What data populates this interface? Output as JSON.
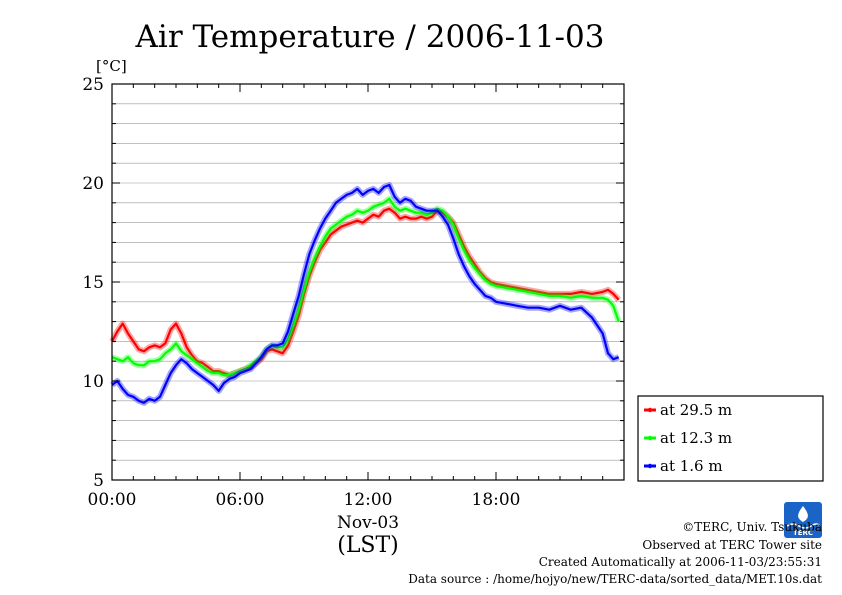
{
  "chart_data": {
    "type": "line",
    "title": "Air Temperature / 2006-11-03",
    "ylabel_unit": "[°C]",
    "xlim": [
      0,
      24
    ],
    "ylim": [
      5,
      25
    ],
    "y_ticks": [
      5,
      10,
      15,
      20,
      25
    ],
    "x_ticks": [
      {
        "value": 0,
        "label": "00:00"
      },
      {
        "value": 6,
        "label": "06:00"
      },
      {
        "value": 12,
        "label": "12:00"
      },
      {
        "value": 18,
        "label": "18:00"
      }
    ],
    "x_sublabel": "Nov-03",
    "x_axis_label": "(LST)",
    "grid": true,
    "legend_position": "right-bottom",
    "series": [
      {
        "name": "at 29.5 m",
        "color": "#ff0000",
        "x": [
          0,
          0.25,
          0.5,
          0.75,
          1,
          1.25,
          1.5,
          1.75,
          2,
          2.25,
          2.5,
          2.75,
          3,
          3.25,
          3.5,
          3.75,
          4,
          4.25,
          4.5,
          4.75,
          5,
          5.25,
          5.5,
          5.75,
          6,
          6.25,
          6.5,
          6.75,
          7,
          7.25,
          7.5,
          7.75,
          8,
          8.25,
          8.5,
          8.75,
          9,
          9.25,
          9.5,
          9.75,
          10,
          10.25,
          10.5,
          10.75,
          11,
          11.25,
          11.5,
          11.75,
          12,
          12.25,
          12.5,
          12.75,
          13,
          13.25,
          13.5,
          13.75,
          14,
          14.25,
          14.5,
          14.75,
          15,
          15.25,
          15.5,
          15.75,
          16,
          16.25,
          16.5,
          16.75,
          17,
          17.25,
          17.5,
          17.75,
          18,
          18.5,
          19,
          19.5,
          20,
          20.5,
          21,
          21.5,
          22,
          22.5,
          23,
          23.25,
          23.5,
          23.75
        ],
        "values": [
          12.0,
          12.5,
          12.9,
          12.4,
          12.0,
          11.6,
          11.5,
          11.7,
          11.8,
          11.7,
          11.9,
          12.6,
          12.9,
          12.4,
          11.7,
          11.3,
          11.0,
          10.9,
          10.7,
          10.5,
          10.5,
          10.4,
          10.3,
          10.4,
          10.5,
          10.6,
          10.7,
          10.9,
          11.1,
          11.5,
          11.6,
          11.5,
          11.4,
          11.8,
          12.5,
          13.3,
          14.4,
          15.3,
          16.0,
          16.6,
          17.0,
          17.4,
          17.6,
          17.8,
          17.9,
          18.0,
          18.1,
          18.0,
          18.2,
          18.4,
          18.3,
          18.6,
          18.7,
          18.5,
          18.2,
          18.3,
          18.2,
          18.2,
          18.3,
          18.2,
          18.3,
          18.6,
          18.5,
          18.3,
          18.0,
          17.4,
          16.8,
          16.3,
          15.9,
          15.5,
          15.2,
          15.0,
          14.9,
          14.8,
          14.7,
          14.6,
          14.5,
          14.4,
          14.4,
          14.4,
          14.5,
          14.4,
          14.5,
          14.6,
          14.4,
          14.1
        ]
      },
      {
        "name": "at 12.3 m",
        "color": "#00ff00",
        "x": [
          0,
          0.25,
          0.5,
          0.75,
          1,
          1.25,
          1.5,
          1.75,
          2,
          2.25,
          2.5,
          2.75,
          3,
          3.25,
          3.5,
          3.75,
          4,
          4.25,
          4.5,
          4.75,
          5,
          5.25,
          5.5,
          5.75,
          6,
          6.25,
          6.5,
          6.75,
          7,
          7.25,
          7.5,
          7.75,
          8,
          8.25,
          8.5,
          8.75,
          9,
          9.25,
          9.5,
          9.75,
          10,
          10.25,
          10.5,
          10.75,
          11,
          11.25,
          11.5,
          11.75,
          12,
          12.25,
          12.5,
          12.75,
          13,
          13.25,
          13.5,
          13.75,
          14,
          14.25,
          14.5,
          14.75,
          15,
          15.25,
          15.5,
          15.75,
          16,
          16.25,
          16.5,
          16.75,
          17,
          17.25,
          17.5,
          17.75,
          18,
          18.5,
          19,
          19.5,
          20,
          20.5,
          21,
          21.5,
          22,
          22.5,
          23,
          23.25,
          23.5,
          23.75
        ],
        "values": [
          11.2,
          11.1,
          11.0,
          11.2,
          10.9,
          10.8,
          10.8,
          11.0,
          11.0,
          11.1,
          11.4,
          11.6,
          11.9,
          11.5,
          11.3,
          11.1,
          10.9,
          10.7,
          10.5,
          10.4,
          10.4,
          10.3,
          10.3,
          10.4,
          10.5,
          10.6,
          10.8,
          11.0,
          11.2,
          11.6,
          11.8,
          11.7,
          11.7,
          12.1,
          12.8,
          13.6,
          14.6,
          15.5,
          16.2,
          16.8,
          17.3,
          17.7,
          17.9,
          18.1,
          18.3,
          18.4,
          18.6,
          18.5,
          18.6,
          18.8,
          18.9,
          19.0,
          19.2,
          18.8,
          18.6,
          18.7,
          18.6,
          18.5,
          18.5,
          18.4,
          18.5,
          18.7,
          18.6,
          18.3,
          17.9,
          17.2,
          16.6,
          16.1,
          15.7,
          15.4,
          15.1,
          14.9,
          14.8,
          14.7,
          14.6,
          14.5,
          14.4,
          14.3,
          14.3,
          14.2,
          14.3,
          14.2,
          14.2,
          14.1,
          13.8,
          13.0
        ]
      },
      {
        "name": "at 1.6 m",
        "color": "#0000ff",
        "x": [
          0,
          0.25,
          0.5,
          0.75,
          1,
          1.25,
          1.5,
          1.75,
          2,
          2.25,
          2.5,
          2.75,
          3,
          3.25,
          3.5,
          3.75,
          4,
          4.25,
          4.5,
          4.75,
          5,
          5.25,
          5.5,
          5.75,
          6,
          6.25,
          6.5,
          6.75,
          7,
          7.25,
          7.5,
          7.75,
          8,
          8.25,
          8.5,
          8.75,
          9,
          9.25,
          9.5,
          9.75,
          10,
          10.25,
          10.5,
          10.75,
          11,
          11.25,
          11.5,
          11.75,
          12,
          12.25,
          12.5,
          12.75,
          13,
          13.25,
          13.5,
          13.75,
          14,
          14.25,
          14.5,
          14.75,
          15,
          15.25,
          15.5,
          15.75,
          16,
          16.25,
          16.5,
          16.75,
          17,
          17.25,
          17.5,
          17.75,
          18,
          18.5,
          19,
          19.5,
          20,
          20.5,
          21,
          21.5,
          22,
          22.5,
          23,
          23.25,
          23.5,
          23.75
        ],
        "values": [
          9.8,
          10.0,
          9.6,
          9.3,
          9.2,
          9.0,
          8.9,
          9.1,
          9.0,
          9.2,
          9.8,
          10.4,
          10.8,
          11.1,
          10.9,
          10.6,
          10.4,
          10.2,
          10.0,
          9.8,
          9.5,
          9.9,
          10.1,
          10.2,
          10.4,
          10.5,
          10.6,
          10.9,
          11.2,
          11.6,
          11.8,
          11.8,
          11.9,
          12.5,
          13.4,
          14.3,
          15.4,
          16.4,
          17.1,
          17.7,
          18.2,
          18.6,
          19.0,
          19.2,
          19.4,
          19.5,
          19.7,
          19.4,
          19.6,
          19.7,
          19.5,
          19.8,
          19.9,
          19.3,
          19.0,
          19.2,
          19.1,
          18.8,
          18.7,
          18.6,
          18.6,
          18.6,
          18.3,
          17.9,
          17.2,
          16.4,
          15.8,
          15.3,
          14.9,
          14.6,
          14.3,
          14.2,
          14.0,
          13.9,
          13.8,
          13.7,
          13.7,
          13.6,
          13.8,
          13.6,
          13.7,
          13.2,
          12.4,
          11.4,
          11.1,
          11.2
        ]
      }
    ]
  },
  "footer": {
    "copyright": "©TERC, Univ. Tsukuba",
    "observed": "Observed at TERC Tower site",
    "created": "Created Automatically at 2006-11-03/23:55:31",
    "source": "Data source : /home/hojyo/new/TERC-data/sorted_data/MET.10s.dat"
  },
  "logo": {
    "text": "TERC",
    "color": "#1a64c8"
  }
}
